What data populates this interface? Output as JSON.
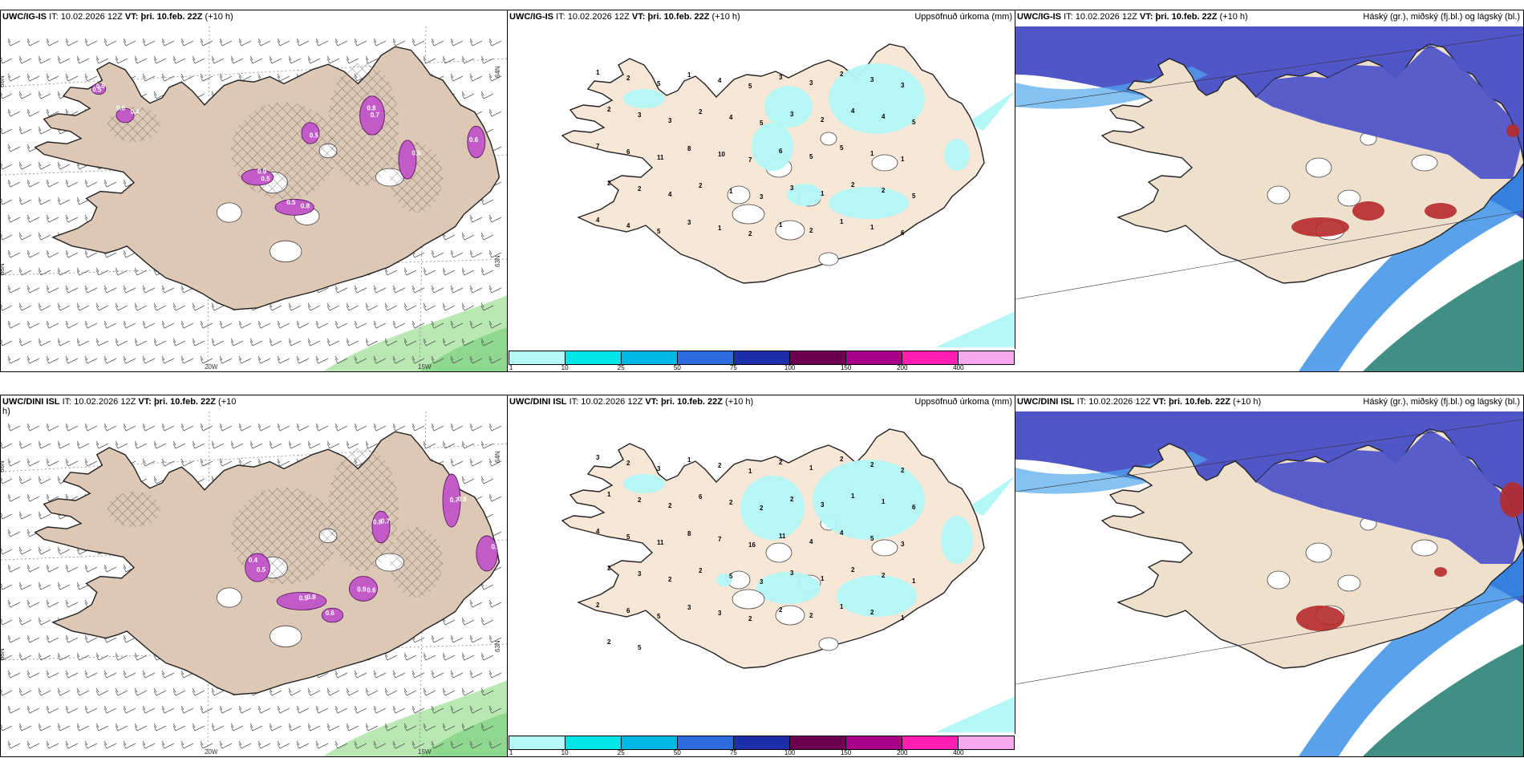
{
  "panels": [
    {
      "id": "p1",
      "kind": "wind",
      "title_model": "UWC/IG-IS",
      "title_it_label": "IT:",
      "title_it": "10.02.2026 12Z",
      "title_vt_label": "VT:",
      "title_vt": "þri. 10.feb. 22Z",
      "title_lead": "(+10 h)",
      "lat_labels": [
        "66N",
        "65N",
        "64N",
        "63N"
      ],
      "lon_labels": [
        "20W",
        "15W"
      ],
      "values": [
        "0.6",
        "0.6",
        "0.5",
        "0.5",
        "0.7",
        "0.6",
        "0.6",
        "0.5",
        "0.4",
        "0.5",
        "0.9",
        "0.8",
        "0.8"
      ]
    },
    {
      "id": "p2",
      "kind": "precip",
      "title_model": "UWC/IG-IS",
      "title_it_label": "IT:",
      "title_it": "10.02.2026 12Z",
      "title_vt_label": "VT:",
      "title_vt": "þri. 10.feb. 22Z",
      "title_lead": "(+10 h)",
      "right_label": "Uppsöfnuð úrkoma (mm)",
      "values": [
        "1",
        "2",
        "5",
        "1",
        "4",
        "5",
        "3",
        "3",
        "2",
        "3",
        "3",
        "2",
        "3",
        "3",
        "2",
        "4",
        "5",
        "3",
        "2",
        "4",
        "4",
        "5",
        "7",
        "6",
        "11",
        "8",
        "10",
        "7",
        "6",
        "5",
        "5",
        "1",
        "1",
        "2",
        "2",
        "4",
        "2",
        "1",
        "3",
        "3",
        "1",
        "2",
        "2",
        "5",
        "4",
        "4",
        "5",
        "3",
        "1",
        "2",
        "1",
        "2",
        "1",
        "1",
        "6"
      ]
    },
    {
      "id": "p3",
      "kind": "cloud",
      "title_model": "UWC/IG-IS",
      "title_it_label": "IT:",
      "title_it": "10.02.2026 12Z",
      "title_vt_label": "VT:",
      "title_vt": "þri. 10.feb. 22Z",
      "title_lead": "(+10 h)",
      "right_label": "Háský (gr.), miðský (fj.bl.) og lágský (bl.)"
    },
    {
      "id": "p4",
      "kind": "wind",
      "title_model": "UWC/DINI ISL",
      "title_it_label": "IT:",
      "title_it": "10.02.2026 12Z",
      "title_vt_label": "VT:",
      "title_vt": "þri. 10.feb. 22Z",
      "title_lead": "(+10",
      "title_lead2": "h)",
      "lat_labels": [
        "66N",
        "65N",
        "64N",
        "63N"
      ],
      "lon_labels": [
        "20W",
        "15W"
      ],
      "values": [
        "0.4",
        "0.5",
        "0.6",
        "0.8",
        "0.7",
        "0.9",
        "0.6",
        "0.5",
        "0.8",
        "0.9",
        "0.7",
        "0.8"
      ]
    },
    {
      "id": "p5",
      "kind": "precip",
      "title_model": "UWC/DINI ISL",
      "title_it_label": "IT:",
      "title_it": "10.02.2026 12Z",
      "title_vt_label": "VT:",
      "title_vt": "þri. 10.feb. 22Z",
      "title_lead": "(+10 h)",
      "right_label": "Uppsöfnuð úrkoma (mm)",
      "values": [
        "3",
        "2",
        "3",
        "1",
        "2",
        "1",
        "2",
        "1",
        "2",
        "2",
        "2",
        "1",
        "2",
        "2",
        "6",
        "2",
        "2",
        "2",
        "3",
        "1",
        "1",
        "6",
        "4",
        "5",
        "11",
        "8",
        "7",
        "16",
        "11",
        "4",
        "4",
        "5",
        "3",
        "2",
        "3",
        "2",
        "2",
        "5",
        "3",
        "3",
        "1",
        "2",
        "2",
        "1",
        "2",
        "6",
        "5",
        "3",
        "3",
        "2",
        "2",
        "2",
        "1",
        "2",
        "1",
        "2",
        "5"
      ]
    },
    {
      "id": "p6",
      "kind": "cloud",
      "title_model": "UWC/DINI ISL",
      "title_it_label": "IT:",
      "title_it": "10.02.2026 12Z",
      "title_vt_label": "VT:",
      "title_vt": "þri. 10.feb. 22Z",
      "title_lead": "(+10 h)",
      "right_label": "Háský (gr.), miðský (fj.bl.) og lágský (bl.)"
    }
  ],
  "legend": {
    "ticks": [
      "1",
      "10",
      "25",
      "50",
      "75",
      "100",
      "150",
      "200",
      "400"
    ],
    "colors": [
      "#b3f7f7",
      "#00e5e5",
      "#00b8e6",
      "#2f6be0",
      "#1c2fa8",
      "#6b0050",
      "#a8008a",
      "#ff1fb4",
      "#f5a8ee"
    ]
  },
  "colors": {
    "land": "#efe0cd",
    "land_wind": "#dcc8b4",
    "precip_light": "#b3f7f7",
    "mid_cloud": "#5055c8",
    "low_cloud": "#2f8be6",
    "snow": "#c25bc8",
    "high_cloud_red": "#b52a2a",
    "sea_green": "#8fd88f"
  }
}
